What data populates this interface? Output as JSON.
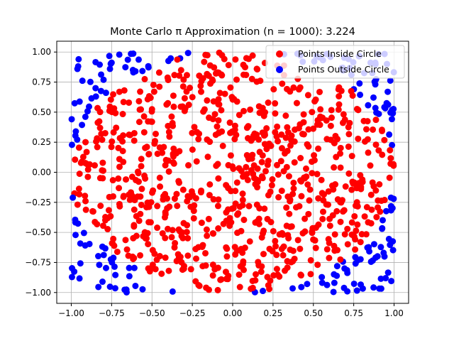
{
  "chart_data": {
    "type": "scatter",
    "title": "Monte Carlo π Approximation (n = 1000): 3.224",
    "xlabel": "",
    "ylabel": "",
    "xlim": [
      -1.09,
      1.09
    ],
    "ylim": [
      -1.09,
      1.09
    ],
    "grid": true,
    "legend_position": "top-right",
    "x_ticks": [
      "−1.00",
      "−0.75",
      "−0.50",
      "−0.25",
      "0.00",
      "0.25",
      "0.50",
      "0.75",
      "1.00"
    ],
    "y_ticks": [
      "−1.00",
      "−0.75",
      "−0.50",
      "−0.25",
      "0.00",
      "0.25",
      "0.50",
      "0.75",
      "1.00"
    ],
    "n": 1000,
    "estimate": 3.224,
    "series": [
      {
        "name": "Points Inside Circle",
        "color": "#ff0000",
        "count": 806
      },
      {
        "name": "Points Outside Circle",
        "color": "#0000ff",
        "count": 194
      }
    ]
  }
}
